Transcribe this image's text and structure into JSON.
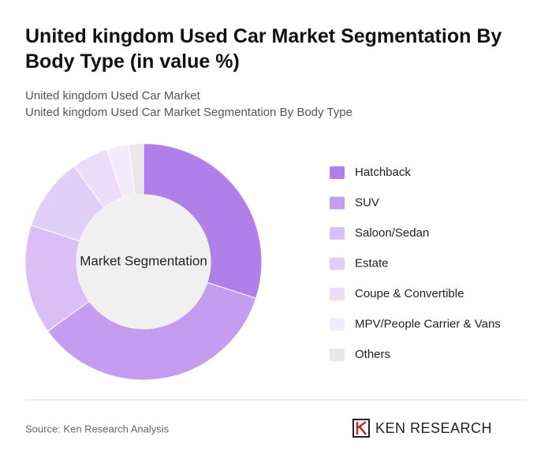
{
  "chart_data": {
    "type": "donut",
    "title": "United kingdom Used Car Market Segmentation By Body Type (in value %)",
    "subtitle": [
      "United kingdom Used Car Market",
      "United kingdom Used Car Market Segmentation By Body Type"
    ],
    "center_label": "Market Segmentation",
    "categories": [
      "Hatchback",
      "SUV",
      "Saloon/Sedan",
      "Estate",
      "Coupe & Convertible",
      "MPV/People Carrier & Vans",
      "Others"
    ],
    "values": [
      30,
      35,
      15,
      10,
      5,
      3,
      2
    ],
    "colors": [
      "#b07fea",
      "#c49cf0",
      "#d9bff5",
      "#e2cff7",
      "#ebdcf9",
      "#f2ebfb",
      "#e8e8e8"
    ],
    "source": "Source: Ken Research Analysis",
    "brand": "KEN RESEARCH"
  }
}
